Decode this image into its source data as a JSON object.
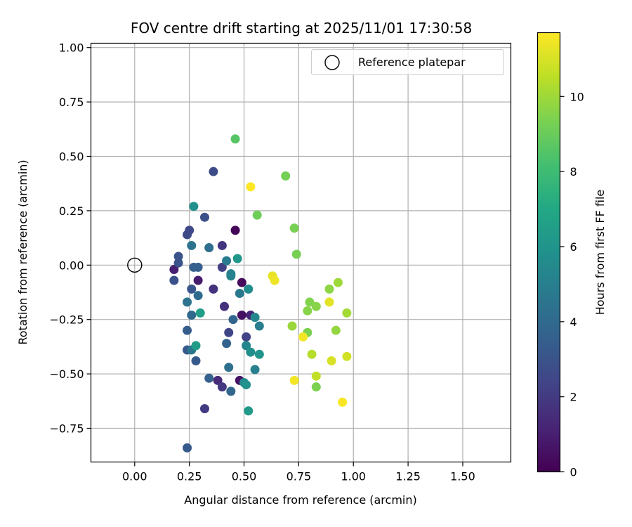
{
  "chart_data": {
    "type": "scatter",
    "title": "FOV centre drift starting at 2025/11/01 17:30:58",
    "xlabel": "Angular distance from reference (arcmin)",
    "ylabel": "Rotation from reference (arcmin)",
    "xlim": [
      -0.2,
      1.72
    ],
    "ylim": [
      -0.905,
      1.02
    ],
    "xticks": [
      "0.00",
      "0.25",
      "0.50",
      "0.75",
      "1.00",
      "1.25",
      "1.50"
    ],
    "xtick_values": [
      0,
      0.25,
      0.5,
      0.75,
      1.0,
      1.25,
      1.5
    ],
    "yticks": [
      "−0.75",
      "−0.50",
      "−0.25",
      "0.00",
      "0.25",
      "0.50",
      "0.75",
      "1.00"
    ],
    "ytick_values": [
      -0.75,
      -0.5,
      -0.25,
      0,
      0.25,
      0.5,
      0.75,
      1.0
    ],
    "grid": true,
    "legend": {
      "position": "top-right",
      "entries": [
        {
          "label": "Reference platepar",
          "marker": "open-circle"
        }
      ]
    },
    "reference_point": {
      "x": 0.0,
      "y": 0.0
    },
    "colorbar": {
      "label": "Hours from first FF file",
      "colormap": "viridis",
      "range": [
        0,
        11.7
      ],
      "ticks": [
        "0",
        "2",
        "4",
        "6",
        "8",
        "10"
      ],
      "tick_values": [
        0,
        2,
        4,
        6,
        8,
        10
      ]
    },
    "points": [
      {
        "x": 0.46,
        "y": 0.16,
        "hours": 0.1
      },
      {
        "x": 0.49,
        "y": -0.08,
        "hours": 0.3
      },
      {
        "x": 0.49,
        "y": -0.23,
        "hours": 0.5
      },
      {
        "x": 0.48,
        "y": -0.53,
        "hours": 0.6
      },
      {
        "x": 0.29,
        "y": -0.07,
        "hours": 0.9
      },
      {
        "x": 0.18,
        "y": -0.02,
        "hours": 1.0
      },
      {
        "x": 0.53,
        "y": -0.23,
        "hours": 1.2
      },
      {
        "x": 0.38,
        "y": -0.53,
        "hours": 1.4
      },
      {
        "x": 0.41,
        "y": -0.19,
        "hours": 1.6
      },
      {
        "x": 0.36,
        "y": -0.11,
        "hours": 1.7
      },
      {
        "x": 0.4,
        "y": 0.09,
        "hours": 1.8
      },
      {
        "x": 0.4,
        "y": -0.56,
        "hours": 1.9
      },
      {
        "x": 0.32,
        "y": -0.66,
        "hours": 2.0
      },
      {
        "x": 0.4,
        "y": -0.01,
        "hours": 2.2
      },
      {
        "x": 0.51,
        "y": -0.33,
        "hours": 2.3
      },
      {
        "x": 0.43,
        "y": -0.31,
        "hours": 2.4
      },
      {
        "x": 0.25,
        "y": 0.16,
        "hours": 2.5
      },
      {
        "x": 0.24,
        "y": 0.14,
        "hours": 2.6
      },
      {
        "x": 0.36,
        "y": 0.43,
        "hours": 2.7
      },
      {
        "x": 0.32,
        "y": 0.22,
        "hours": 2.8
      },
      {
        "x": 0.18,
        "y": -0.07,
        "hours": 2.9
      },
      {
        "x": 0.2,
        "y": 0.04,
        "hours": 3.0
      },
      {
        "x": 0.2,
        "y": 0.01,
        "hours": 3.0
      },
      {
        "x": 0.26,
        "y": -0.11,
        "hours": 3.1
      },
      {
        "x": 0.24,
        "y": -0.39,
        "hours": 3.2
      },
      {
        "x": 0.28,
        "y": -0.44,
        "hours": 3.3
      },
      {
        "x": 0.24,
        "y": -0.84,
        "hours": 3.3
      },
      {
        "x": 0.24,
        "y": -0.3,
        "hours": 3.4
      },
      {
        "x": 0.29,
        "y": -0.01,
        "hours": 3.5
      },
      {
        "x": 0.27,
        "y": -0.01,
        "hours": 3.5
      },
      {
        "x": 0.34,
        "y": -0.52,
        "hours": 3.6
      },
      {
        "x": 0.42,
        "y": -0.36,
        "hours": 3.7
      },
      {
        "x": 0.45,
        "y": -0.25,
        "hours": 3.8
      },
      {
        "x": 0.44,
        "y": -0.58,
        "hours": 3.9
      },
      {
        "x": 0.26,
        "y": -0.23,
        "hours": 4.0
      },
      {
        "x": 0.29,
        "y": -0.14,
        "hours": 4.1
      },
      {
        "x": 0.34,
        "y": 0.08,
        "hours": 4.2
      },
      {
        "x": 0.43,
        "y": -0.47,
        "hours": 4.3
      },
      {
        "x": 0.24,
        "y": -0.17,
        "hours": 4.4
      },
      {
        "x": 0.26,
        "y": 0.09,
        "hours": 4.5
      },
      {
        "x": 0.26,
        "y": -0.39,
        "hours": 4.6
      },
      {
        "x": 0.48,
        "y": -0.13,
        "hours": 4.7
      },
      {
        "x": 0.42,
        "y": 0.02,
        "hours": 4.8
      },
      {
        "x": 0.57,
        "y": -0.28,
        "hours": 4.9
      },
      {
        "x": 0.55,
        "y": -0.48,
        "hours": 5.0
      },
      {
        "x": 0.44,
        "y": -0.04,
        "hours": 5.1
      },
      {
        "x": 0.44,
        "y": -0.05,
        "hours": 5.2
      },
      {
        "x": 0.51,
        "y": -0.37,
        "hours": 5.3
      },
      {
        "x": 0.55,
        "y": -0.24,
        "hours": 5.4
      },
      {
        "x": 0.5,
        "y": -0.54,
        "hours": 5.5
      },
      {
        "x": 0.52,
        "y": -0.11,
        "hours": 5.6
      },
      {
        "x": 0.53,
        "y": -0.4,
        "hours": 5.7
      },
      {
        "x": 0.27,
        "y": 0.27,
        "hours": 5.8
      },
      {
        "x": 0.51,
        "y": -0.55,
        "hours": 5.9
      },
      {
        "x": 0.57,
        "y": -0.41,
        "hours": 6.0
      },
      {
        "x": 0.47,
        "y": 0.03,
        "hours": 6.1
      },
      {
        "x": 0.52,
        "y": -0.67,
        "hours": 6.3
      },
      {
        "x": 0.28,
        "y": -0.37,
        "hours": 6.4
      },
      {
        "x": 0.3,
        "y": -0.22,
        "hours": 6.5
      },
      {
        "x": 0.46,
        "y": 0.58,
        "hours": 8.6
      },
      {
        "x": 0.56,
        "y": 0.23,
        "hours": 9.1
      },
      {
        "x": 0.69,
        "y": 0.41,
        "hours": 9.2
      },
      {
        "x": 0.73,
        "y": 0.17,
        "hours": 9.3
      },
      {
        "x": 0.74,
        "y": 0.05,
        "hours": 9.3
      },
      {
        "x": 0.79,
        "y": -0.31,
        "hours": 9.4
      },
      {
        "x": 0.83,
        "y": -0.56,
        "hours": 9.4
      },
      {
        "x": 0.8,
        "y": -0.17,
        "hours": 9.5
      },
      {
        "x": 0.79,
        "y": -0.21,
        "hours": 9.6
      },
      {
        "x": 0.83,
        "y": -0.19,
        "hours": 9.6
      },
      {
        "x": 0.89,
        "y": -0.11,
        "hours": 9.7
      },
      {
        "x": 0.92,
        "y": -0.3,
        "hours": 9.8
      },
      {
        "x": 0.72,
        "y": -0.28,
        "hours": 9.9
      },
      {
        "x": 0.93,
        "y": -0.08,
        "hours": 10.0
      },
      {
        "x": 0.97,
        "y": -0.22,
        "hours": 10.1
      },
      {
        "x": 0.81,
        "y": -0.41,
        "hours": 10.4
      },
      {
        "x": 0.83,
        "y": -0.51,
        "hours": 10.6
      },
      {
        "x": 0.97,
        "y": -0.42,
        "hours": 10.9
      },
      {
        "x": 0.9,
        "y": -0.44,
        "hours": 11.0
      },
      {
        "x": 0.89,
        "y": -0.17,
        "hours": 11.2
      },
      {
        "x": 0.63,
        "y": -0.05,
        "hours": 11.3
      },
      {
        "x": 0.64,
        "y": -0.07,
        "hours": 11.4
      },
      {
        "x": 0.77,
        "y": -0.33,
        "hours": 11.5
      },
      {
        "x": 0.73,
        "y": -0.53,
        "hours": 11.5
      },
      {
        "x": 0.95,
        "y": -0.63,
        "hours": 11.6
      },
      {
        "x": 0.53,
        "y": 0.36,
        "hours": 11.7
      }
    ]
  }
}
